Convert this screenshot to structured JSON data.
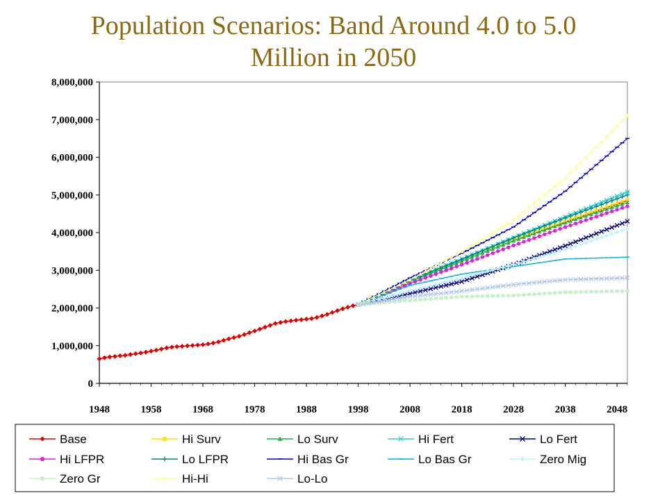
{
  "title": {
    "line1": "Population Scenarios: Band Around 4.0 to 5.0",
    "line2": "Million in 2050"
  },
  "chart_data": {
    "type": "line",
    "title": "Population Scenarios: Band Around 4.0 to 5.0 Million in 2050",
    "xlabel": "",
    "ylabel": "",
    "xlim": [
      1948,
      2050
    ],
    "ylim": [
      0,
      8000000
    ],
    "x_ticks": [
      "1948",
      "1958",
      "1968",
      "1978",
      "1988",
      "1998",
      "2008",
      "2018",
      "2028",
      "2038",
      "2048"
    ],
    "y_ticks": [
      "0",
      "1,000,000",
      "2,000,000",
      "3,000,000",
      "4,000,000",
      "5,000,000",
      "6,000,000",
      "7,000,000",
      "8,000,000"
    ],
    "grid": false,
    "legend_position": "bottom",
    "base_history": [
      [
        1948,
        650000
      ],
      [
        1949,
        680000
      ],
      [
        1950,
        700000
      ],
      [
        1951,
        715000
      ],
      [
        1952,
        730000
      ],
      [
        1953,
        745000
      ],
      [
        1954,
        765000
      ],
      [
        1955,
        785000
      ],
      [
        1956,
        805000
      ],
      [
        1957,
        830000
      ],
      [
        1958,
        855000
      ],
      [
        1959,
        880000
      ],
      [
        1960,
        910000
      ],
      [
        1961,
        940000
      ],
      [
        1962,
        960000
      ],
      [
        1963,
        975000
      ],
      [
        1964,
        985000
      ],
      [
        1965,
        995000
      ],
      [
        1966,
        1005000
      ],
      [
        1967,
        1015000
      ],
      [
        1968,
        1025000
      ],
      [
        1969,
        1045000
      ],
      [
        1970,
        1070000
      ],
      [
        1971,
        1100000
      ],
      [
        1972,
        1140000
      ],
      [
        1973,
        1180000
      ],
      [
        1974,
        1215000
      ],
      [
        1975,
        1250000
      ],
      [
        1976,
        1295000
      ],
      [
        1977,
        1345000
      ],
      [
        1978,
        1390000
      ],
      [
        1979,
        1440000
      ],
      [
        1980,
        1490000
      ],
      [
        1981,
        1540000
      ],
      [
        1982,
        1590000
      ],
      [
        1983,
        1615000
      ],
      [
        1984,
        1640000
      ],
      [
        1985,
        1660000
      ],
      [
        1986,
        1675000
      ],
      [
        1987,
        1690000
      ],
      [
        1988,
        1705000
      ],
      [
        1989,
        1720000
      ],
      [
        1990,
        1750000
      ],
      [
        1991,
        1790000
      ],
      [
        1992,
        1830000
      ],
      [
        1993,
        1880000
      ],
      [
        1994,
        1930000
      ],
      [
        1995,
        1980000
      ],
      [
        1996,
        2020000
      ],
      [
        1997,
        2060000
      ],
      [
        1998,
        2090000
      ]
    ],
    "series": [
      {
        "name": "Base",
        "color": "#E00000",
        "marker": "diamond",
        "points": [
          [
            1998,
            2090000
          ],
          [
            2008,
            2700000
          ],
          [
            2018,
            3250000
          ],
          [
            2028,
            3800000
          ],
          [
            2038,
            4280000
          ],
          [
            2050,
            4850000
          ]
        ]
      },
      {
        "name": "Hi Surv",
        "color": "#FFE100",
        "marker": "square",
        "points": [
          [
            1998,
            2090000
          ],
          [
            2008,
            2710000
          ],
          [
            2018,
            3260000
          ],
          [
            2028,
            3810000
          ],
          [
            2038,
            4300000
          ],
          [
            2050,
            4880000
          ]
        ]
      },
      {
        "name": "Lo Surv",
        "color": "#22B14C",
        "marker": "triangle",
        "points": [
          [
            1998,
            2090000
          ],
          [
            2008,
            2690000
          ],
          [
            2018,
            3240000
          ],
          [
            2028,
            3780000
          ],
          [
            2038,
            4260000
          ],
          [
            2050,
            4800000
          ]
        ]
      },
      {
        "name": "Hi Fert",
        "color": "#33CCCC",
        "marker": "star",
        "points": [
          [
            1998,
            2090000
          ],
          [
            2008,
            2740000
          ],
          [
            2018,
            3300000
          ],
          [
            2028,
            3870000
          ],
          [
            2038,
            4420000
          ],
          [
            2050,
            5080000
          ]
        ]
      },
      {
        "name": "Lo Fert",
        "color": "#000080",
        "marker": "x",
        "points": [
          [
            1998,
            2090000
          ],
          [
            2008,
            2380000
          ],
          [
            2018,
            2700000
          ],
          [
            2028,
            3150000
          ],
          [
            2038,
            3650000
          ],
          [
            2050,
            4300000
          ]
        ]
      },
      {
        "name": "Hi LFPR",
        "color": "#E020E0",
        "marker": "circle",
        "points": [
          [
            1998,
            2090000
          ],
          [
            2008,
            2650000
          ],
          [
            2018,
            3150000
          ],
          [
            2028,
            3660000
          ],
          [
            2038,
            4150000
          ],
          [
            2050,
            4700000
          ]
        ]
      },
      {
        "name": "Lo LFPR",
        "color": "#008080",
        "marker": "plus",
        "points": [
          [
            1998,
            2090000
          ],
          [
            2008,
            2730000
          ],
          [
            2018,
            3290000
          ],
          [
            2028,
            3860000
          ],
          [
            2038,
            4390000
          ],
          [
            2050,
            5000000
          ]
        ]
      },
      {
        "name": "Hi Bas Gr",
        "color": "#0000CC",
        "marker": "dash",
        "points": [
          [
            1998,
            2090000
          ],
          [
            2008,
            2800000
          ],
          [
            2018,
            3450000
          ],
          [
            2028,
            4150000
          ],
          [
            2038,
            5100000
          ],
          [
            2050,
            6500000
          ]
        ]
      },
      {
        "name": "Lo Bas Gr",
        "color": "#00B0E0",
        "marker": "dash",
        "points": [
          [
            1998,
            2090000
          ],
          [
            2008,
            2600000
          ],
          [
            2018,
            2900000
          ],
          [
            2028,
            3100000
          ],
          [
            2038,
            3300000
          ],
          [
            2050,
            3350000
          ]
        ]
      },
      {
        "name": "Zero Mig",
        "color": "#BFF3FF",
        "marker": "diamond",
        "points": [
          [
            1998,
            2090000
          ],
          [
            2008,
            2450000
          ],
          [
            2018,
            2800000
          ],
          [
            2028,
            3150000
          ],
          [
            2038,
            3550000
          ],
          [
            2050,
            4100000
          ]
        ]
      },
      {
        "name": "Zero Gr",
        "color": "#C8F0C8",
        "marker": "square",
        "points": [
          [
            1998,
            2090000
          ],
          [
            2008,
            2200000
          ],
          [
            2018,
            2300000
          ],
          [
            2028,
            2330000
          ],
          [
            2038,
            2420000
          ],
          [
            2050,
            2450000
          ]
        ]
      },
      {
        "name": "Hi-Hi",
        "color": "#FFFF99",
        "marker": "triangle",
        "points": [
          [
            1998,
            2090000
          ],
          [
            2008,
            2750000
          ],
          [
            2018,
            3500000
          ],
          [
            2028,
            4350000
          ],
          [
            2038,
            5450000
          ],
          [
            2050,
            7100000
          ]
        ]
      },
      {
        "name": "Lo-Lo",
        "color": "#B0C8E8",
        "marker": "x",
        "points": [
          [
            1998,
            2090000
          ],
          [
            2008,
            2300000
          ],
          [
            2018,
            2450000
          ],
          [
            2028,
            2620000
          ],
          [
            2038,
            2750000
          ],
          [
            2050,
            2800000
          ]
        ]
      }
    ]
  }
}
